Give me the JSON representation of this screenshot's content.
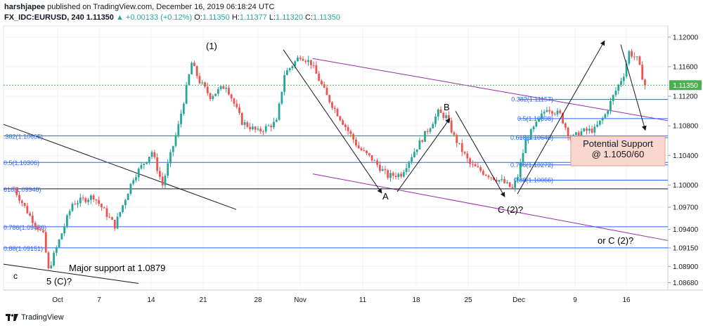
{
  "header": {
    "user": "harshjapee",
    "published_text": "published on TradingView.com, December 16, 2019 06:18:24 UTC"
  },
  "ohlc": {
    "symbol": "FX_IDC:EURUSD, 240",
    "last": "1.11350",
    "change": "▲ +0.00133 (+0.12%)",
    "o_label": "O:",
    "o": "1.11350",
    "h_label": "H:",
    "h": "1.11377",
    "l_label": "L:",
    "l": "1.11320",
    "c_label": "C:",
    "c": "1.11350"
  },
  "footer": {
    "brand": "TradingView"
  },
  "colors": {
    "up": "#26a69a",
    "down": "#ef5350",
    "fib": "#2962ff",
    "channel": "#9c27b0",
    "price_tag": "#4caf50",
    "support_box": "#f8d7cd"
  },
  "chart_data": {
    "type": "candlestick",
    "ylim": [
      1.0858,
      1.1215
    ],
    "y_ticks": [
      "1.12000",
      "1.11600",
      "1.11200",
      "1.10800",
      "1.10400",
      "1.10000",
      "1.09700",
      "1.09400",
      "1.09150",
      "1.08900",
      "1.08680"
    ],
    "x_ticks": [
      "Oct",
      "7",
      "14",
      "21",
      "28",
      "Nov",
      "11",
      "18",
      "25",
      "Dec",
      "9",
      "16"
    ],
    "price_tag": "1.11350",
    "last_price": 1.1135,
    "fib_levels": [
      {
        "label": "0.382(1.11157)",
        "value": 1.11157
      },
      {
        "label": "0.5(1.10898)",
        "value": 1.10898
      },
      {
        "label": "0.618(1.10640)",
        "value": 1.1064
      },
      {
        "label": "0.786(1.10272)",
        "value": 1.10272
      },
      {
        "label": "0.88(1.10066)",
        "value": 1.10066
      }
    ],
    "horizontal_levels": [
      {
        "label": ".382(1.10665)",
        "value": 1.10665
      },
      {
        "label": "0.5(1.10306)",
        "value": 1.10306
      },
      {
        "label": "618(1.09948)",
        "value": 1.09948
      },
      {
        "label": "0.786(1.09436)",
        "value": 1.09436
      },
      {
        "label": "0.88(1.09151)",
        "value": 1.09151
      }
    ],
    "annotations": [
      "(1)",
      "A",
      "B",
      "C (2)?",
      "or C (2)?",
      "Major support at 1.0879",
      "5 (C)?",
      "c"
    ],
    "support_box": {
      "line1": "Potential Support",
      "line2": "@ 1.1050/60"
    },
    "path_points": [
      [
        0,
        1.0995
      ],
      [
        6,
        1.0958
      ],
      [
        11,
        1.0932
      ],
      [
        13,
        1.0885
      ],
      [
        17,
        1.0925
      ],
      [
        22,
        1.0975
      ],
      [
        30,
        1.0985
      ],
      [
        38,
        1.0945
      ],
      [
        45,
        1.101
      ],
      [
        52,
        1.1045
      ],
      [
        56,
        1.1
      ],
      [
        62,
        1.108
      ],
      [
        67,
        1.1165
      ],
      [
        70,
        1.114
      ],
      [
        74,
        1.112
      ],
      [
        80,
        1.1135
      ],
      [
        86,
        1.1085
      ],
      [
        92,
        1.1072
      ],
      [
        99,
        1.1085
      ],
      [
        102,
        1.115
      ],
      [
        108,
        1.1175
      ],
      [
        112,
        1.1165
      ],
      [
        118,
        1.112
      ],
      [
        124,
        1.1085
      ],
      [
        130,
        1.105
      ],
      [
        135,
        1.1035
      ],
      [
        141,
        1.1012
      ],
      [
        146,
        1.1015
      ],
      [
        150,
        1.104
      ],
      [
        157,
        1.108
      ],
      [
        160,
        1.1098
      ],
      [
        163,
        1.1092
      ],
      [
        166,
        1.1065
      ],
      [
        172,
        1.1028
      ],
      [
        178,
        1.1015
      ],
      [
        184,
        1.1005
      ],
      [
        188,
        1.0995
      ],
      [
        190,
        1.1012
      ],
      [
        193,
        1.106
      ],
      [
        197,
        1.1082
      ],
      [
        201,
        1.1105
      ],
      [
        206,
        1.1095
      ],
      [
        210,
        1.1062
      ],
      [
        214,
        1.1072
      ],
      [
        219,
        1.1075
      ],
      [
        223,
        1.1095
      ],
      [
        226,
        1.112
      ],
      [
        230,
        1.115
      ],
      [
        232,
        1.118
      ],
      [
        235,
        1.117
      ],
      [
        238,
        1.1135
      ]
    ]
  }
}
